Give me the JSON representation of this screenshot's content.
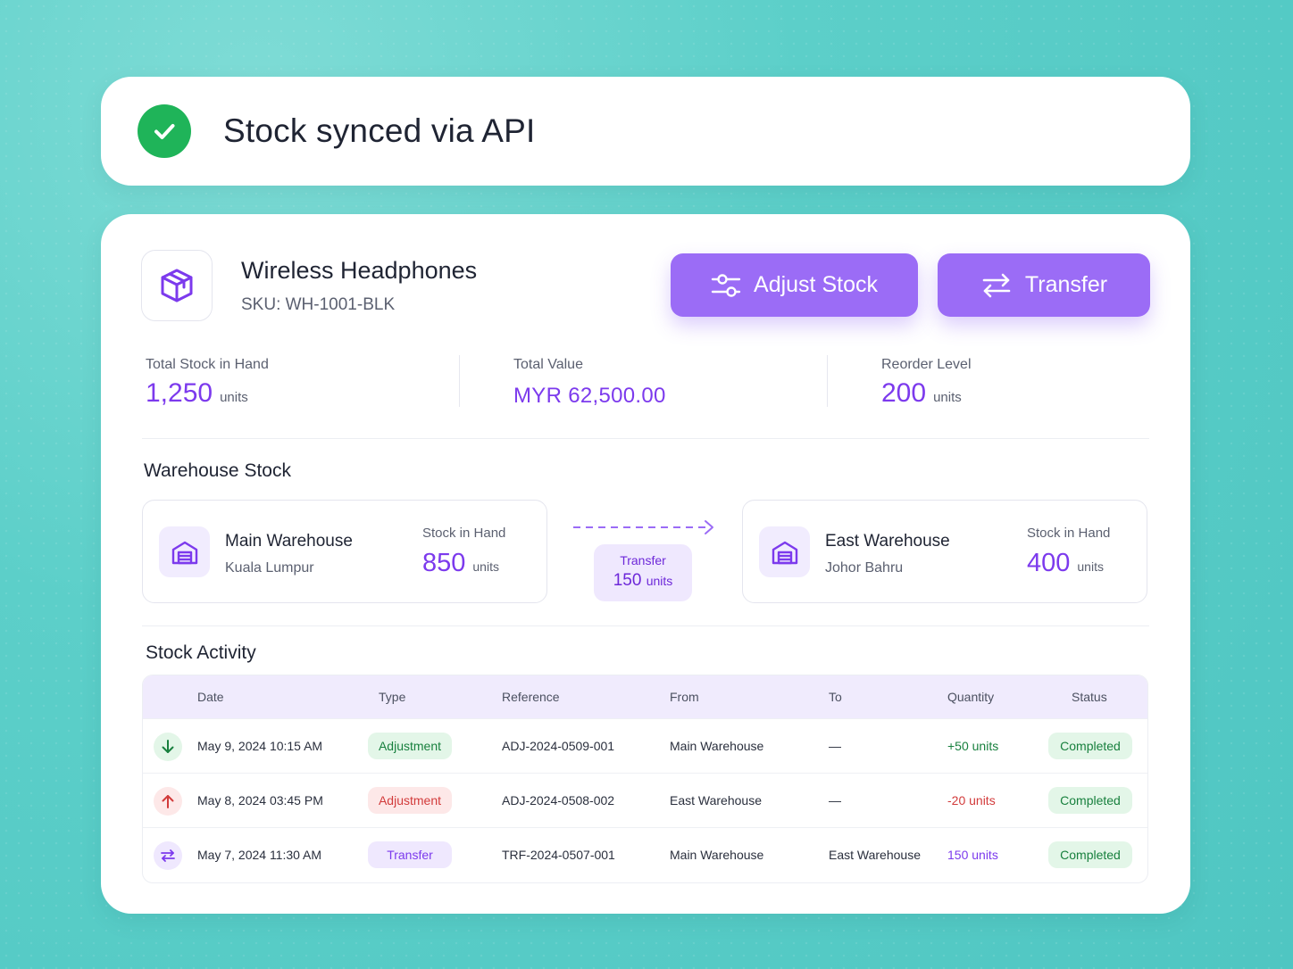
{
  "toast": {
    "message": "Stock synced via API",
    "icon": "check-circle-icon",
    "color": "#1fb459"
  },
  "product": {
    "name": "Wireless Headphones",
    "sku": "SKU: WH-1001-BLK",
    "icon": "box-icon"
  },
  "actions": {
    "adjust_label": "Adjust Stock",
    "transfer_label": "Transfer",
    "accent": "#9b6cf6"
  },
  "stats": {
    "total_stock": {
      "label": "Total Stock in Hand",
      "value": "1,250",
      "unit": "units"
    },
    "total_value": {
      "label": "Total Value",
      "value": "MYR 62,500.00"
    },
    "reorder_level": {
      "label": "Reorder Level",
      "value": "200",
      "unit": "units"
    }
  },
  "warehouse_stock": {
    "title": "Warehouse Stock",
    "from": {
      "name": "Main Warehouse",
      "city": "Kuala Lumpur",
      "stock_label": "Stock in Hand",
      "stock_value": "850",
      "unit": "units"
    },
    "transfer": {
      "label": "Transfer",
      "value": "150",
      "unit": "units"
    },
    "to": {
      "name": "East Warehouse",
      "city": "Johor Bahru",
      "stock_label": "Stock in Hand",
      "stock_value": "400",
      "unit": "units"
    }
  },
  "activity": {
    "title": "Stock Activity",
    "columns": [
      "Date",
      "Type",
      "Reference",
      "From",
      "To",
      "Quantity",
      "Status"
    ],
    "rows": [
      {
        "icon": "arrow-down-icon",
        "date": "May 9, 2024 10:15 AM",
        "type": "Adjustment",
        "reference": "ADJ-2024-0509-001",
        "from": "Main Warehouse",
        "to": "—",
        "quantity": "+50 units",
        "status": "Completed"
      },
      {
        "icon": "arrow-up-icon",
        "date": "May 8, 2024 03:45 PM",
        "type": "Adjustment",
        "reference": "ADJ-2024-0508-002",
        "from": "East Warehouse",
        "to": "—",
        "quantity": "-20 units",
        "status": "Completed"
      },
      {
        "icon": "transfer-arrows-icon",
        "date": "May 7, 2024 11:30 AM",
        "type": "Transfer",
        "reference": "TRF-2024-0507-001",
        "from": "Main Warehouse",
        "to": "East Warehouse",
        "quantity": "150 units",
        "status": "Completed"
      }
    ]
  }
}
